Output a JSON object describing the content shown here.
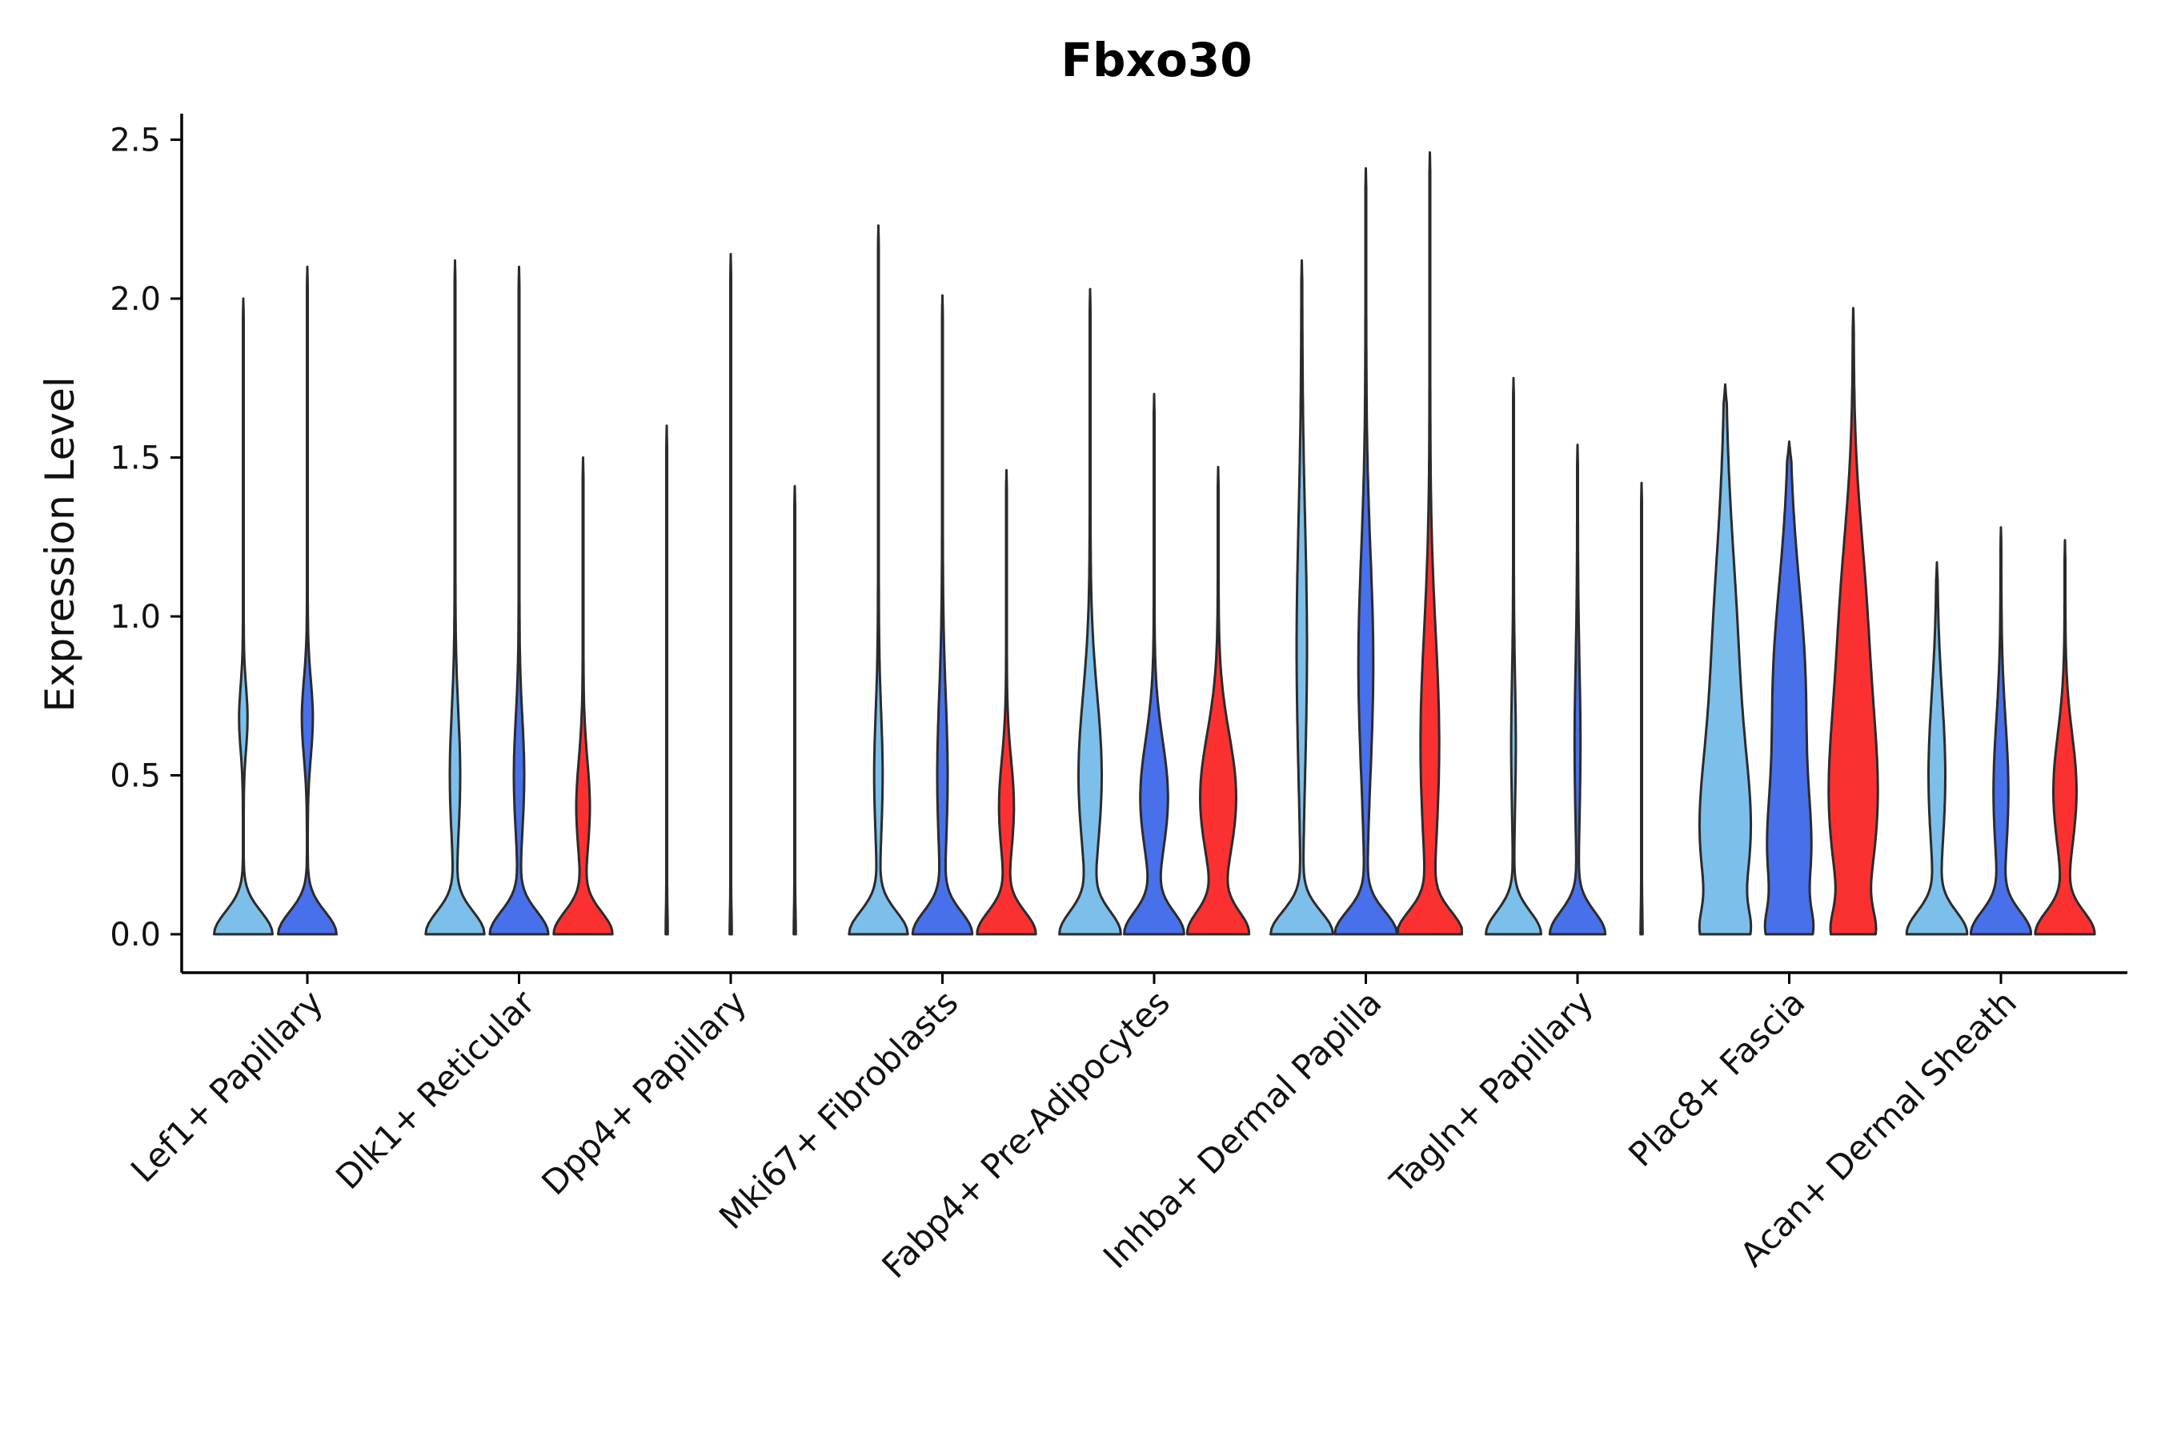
{
  "chart_data": {
    "type": "violin",
    "title": "Fbxo30",
    "xlabel": "",
    "ylabel": "Expression Level",
    "ylim": [
      -0.12,
      2.6
    ],
    "yticks": [
      "0.0",
      "0.5",
      "1.0",
      "1.5",
      "2.0",
      "2.5"
    ],
    "categories": [
      "Lef1+ Papillary",
      "Dlk1+ Reticular",
      "Dpp4+ Papillary",
      "Mki67+ Fibroblasts",
      "Fabp4+ Pre-Adipocytes",
      "Inhba+ Dermal Papilla",
      "Tagln+ Papillary",
      "Plac8+ Fascia",
      "Acan+ Dermal Sheath"
    ],
    "series_colors": [
      "#7dbfeb",
      "#4870ea",
      "#fb3131"
    ],
    "violins": [
      [
        {
          "max": 2.0,
          "base_width": 0.9,
          "bumps": [
            [
              0.68,
              0.1,
              0.12
            ]
          ]
        },
        {
          "max": 2.1,
          "base_width": 0.9,
          "bumps": [
            [
              0.68,
              0.12,
              0.16
            ]
          ]
        },
        null
      ],
      [
        {
          "max": 2.12,
          "base_width": 0.9,
          "bumps": [
            [
              0.5,
              0.2,
              0.15
            ]
          ]
        },
        {
          "max": 2.1,
          "base_width": 0.9,
          "bumps": [
            [
              0.5,
              0.18,
              0.15
            ]
          ]
        },
        {
          "max": 1.5,
          "base_width": 0.9,
          "bumps": [
            [
              0.4,
              0.15,
              0.2
            ]
          ]
        }
      ],
      [
        {
          "max": 1.6,
          "base_width": 0.02,
          "bumps": []
        },
        {
          "max": 2.14,
          "base_width": 0.02,
          "bumps": []
        },
        {
          "max": 1.41,
          "base_width": 0.02,
          "bumps": []
        }
      ],
      [
        {
          "max": 2.23,
          "base_width": 0.9,
          "bumps": [
            [
              0.5,
              0.2,
              0.12
            ]
          ]
        },
        {
          "max": 2.01,
          "base_width": 0.9,
          "bumps": [
            [
              0.5,
              0.25,
              0.15
            ]
          ]
        },
        {
          "max": 1.46,
          "base_width": 0.9,
          "bumps": [
            [
              0.4,
              0.15,
              0.22
            ]
          ]
        }
      ],
      [
        {
          "max": 2.03,
          "base_width": 0.9,
          "bumps": [
            [
              0.5,
              0.25,
              0.35
            ]
          ]
        },
        {
          "max": 1.7,
          "base_width": 0.9,
          "bumps": [
            [
              0.43,
              0.18,
              0.42
            ]
          ]
        },
        {
          "max": 1.47,
          "base_width": 0.9,
          "bumps": [
            [
              0.43,
              0.2,
              0.55
            ]
          ]
        }
      ],
      [
        {
          "max": 2.12,
          "base_width": 0.95,
          "bumps": [
            [
              0.9,
              0.4,
              0.15
            ]
          ]
        },
        {
          "max": 2.41,
          "base_width": 0.95,
          "bumps": [
            [
              0.85,
              0.35,
              0.22
            ]
          ]
        },
        {
          "max": 2.46,
          "base_width": 0.95,
          "bumps": [
            [
              0.6,
              0.35,
              0.28
            ]
          ]
        }
      ],
      [
        {
          "max": 1.75,
          "base_width": 0.85,
          "bumps": [
            [
              0.6,
              0.2,
              0.06
            ]
          ]
        },
        {
          "max": 1.54,
          "base_width": 0.85,
          "bumps": [
            [
              0.6,
              0.25,
              0.08
            ]
          ]
        },
        {
          "max": 1.42,
          "base_width": 0.02,
          "bumps": []
        }
      ],
      [
        {
          "max": 1.73,
          "base_width": 0.4,
          "bumps": [
            [
              0.28,
              0.25,
              0.6
            ],
            [
              0.8,
              0.4,
              0.4
            ]
          ]
        },
        {
          "max": 1.55,
          "base_width": 0.4,
          "bumps": [
            [
              0.22,
              0.2,
              0.5
            ],
            [
              0.75,
              0.35,
              0.5
            ]
          ]
        },
        {
          "max": 1.97,
          "base_width": 0.4,
          "bumps": [
            [
              0.4,
              0.3,
              0.7
            ],
            [
              1.0,
              0.3,
              0.35
            ]
          ]
        }
      ],
      [
        {
          "max": 1.17,
          "base_width": 0.9,
          "bumps": [
            [
              0.5,
              0.25,
              0.25
            ]
          ]
        },
        {
          "max": 1.28,
          "base_width": 0.9,
          "bumps": [
            [
              0.45,
              0.22,
              0.22
            ]
          ]
        },
        {
          "max": 1.24,
          "base_width": 0.9,
          "bumps": [
            [
              0.45,
              0.18,
              0.35
            ]
          ]
        }
      ]
    ]
  }
}
